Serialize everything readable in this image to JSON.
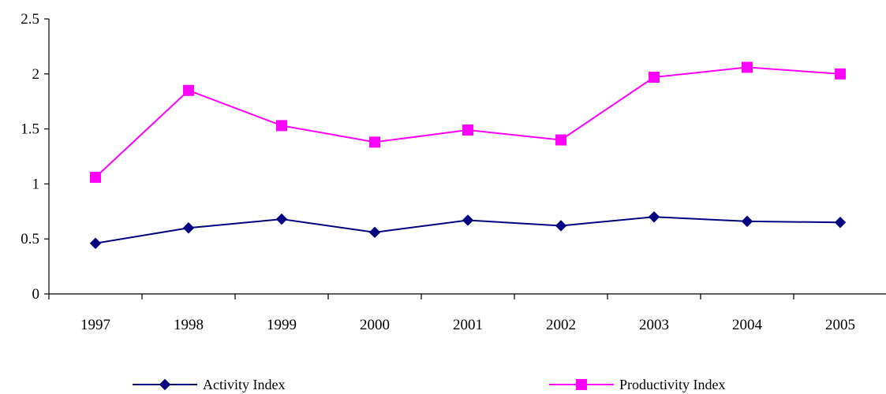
{
  "chart_data": {
    "type": "line",
    "title": "",
    "xlabel": "",
    "ylabel": "",
    "categories": [
      "1997",
      "1998",
      "1999",
      "2000",
      "2001",
      "2002",
      "2003",
      "2004",
      "2005"
    ],
    "ylim": [
      0,
      2.5
    ],
    "yticks": [
      0,
      0.5,
      1,
      1.5,
      2,
      2.5
    ],
    "ytick_labels": [
      "0",
      "0.5",
      "1",
      "1.5",
      "2",
      "2.5"
    ],
    "grid": false,
    "legend_position": "bottom",
    "series": [
      {
        "name": "Activity Index",
        "color": "#000080",
        "marker": "diamond",
        "values": [
          0.46,
          0.6,
          0.68,
          0.56,
          0.67,
          0.62,
          0.7,
          0.66,
          0.65
        ]
      },
      {
        "name": "Productivity Index",
        "color": "#FF00FF",
        "marker": "square",
        "values": [
          1.06,
          1.85,
          1.53,
          1.38,
          1.49,
          1.4,
          1.97,
          2.06,
          2.0
        ]
      }
    ]
  }
}
